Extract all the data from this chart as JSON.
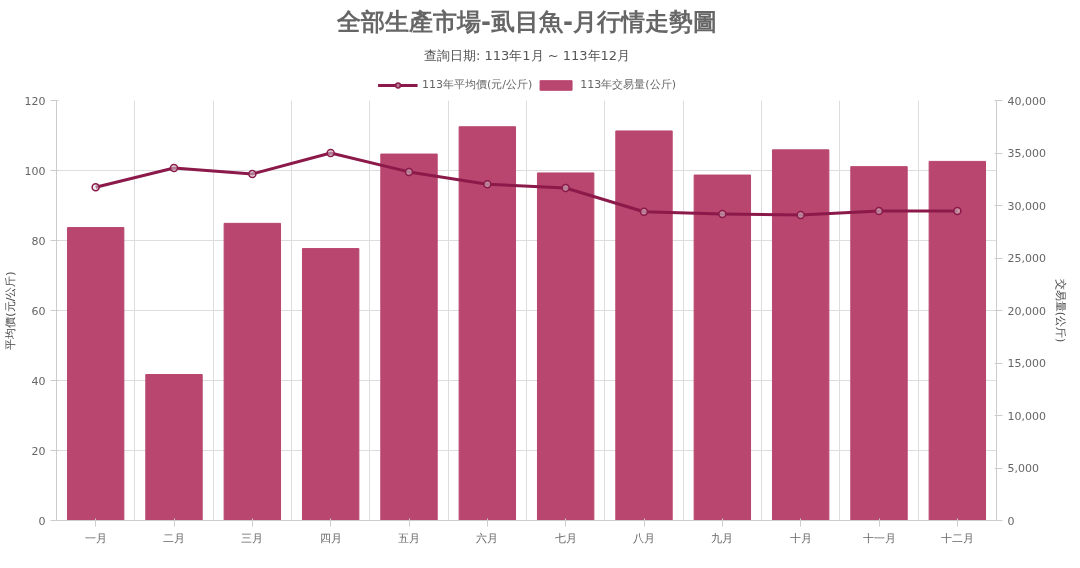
{
  "chart_data": {
    "type": "bar",
    "title": "全部生產市場-虱目魚-月行情走勢圖",
    "subtitle": "查詢日期: 113年1月 ~ 113年12月",
    "ylabel": "平均價(元/公斤)",
    "y2label": "交易量(公斤)",
    "categories": [
      "一月",
      "二月",
      "三月",
      "四月",
      "五月",
      "六月",
      "七月",
      "八月",
      "九月",
      "十月",
      "十一月",
      "十二月"
    ],
    "series": [
      {
        "name": "113年平均價(元/公斤)",
        "type": "line",
        "color": "#8b1a4a",
        "marker": "circle",
        "values": [
          95.2,
          100.7,
          99.0,
          105.0,
          99.6,
          96.1,
          95.0,
          88.2,
          87.6,
          87.3,
          88.4,
          88.4
        ]
      },
      {
        "name": "113年交易量(公斤)",
        "axis": "y2",
        "color": "#b8466e",
        "values": [
          27900,
          13900,
          28300,
          25900,
          34900,
          37500,
          33100,
          37100,
          32900,
          35300,
          33700,
          34200
        ]
      }
    ],
    "ylim": [
      0,
      120
    ],
    "yticks": [
      0,
      20,
      40,
      60,
      80,
      100,
      120
    ],
    "y2lim": [
      0,
      40000
    ],
    "y2ticks": [
      0,
      {
        "value": 5000,
        "label": "5,000"
      },
      {
        "value": 10000,
        "label": "10,000"
      },
      {
        "value": 15000,
        "label": "15,000"
      },
      {
        "value": 20000,
        "label": "20,000"
      },
      {
        "value": 25000,
        "label": "25,000"
      },
      {
        "value": 30000,
        "label": "30,000"
      },
      {
        "value": 35000,
        "label": "35,000"
      },
      {
        "value": 40000,
        "label": "40,000"
      }
    ],
    "grid": true,
    "legend": "top"
  }
}
